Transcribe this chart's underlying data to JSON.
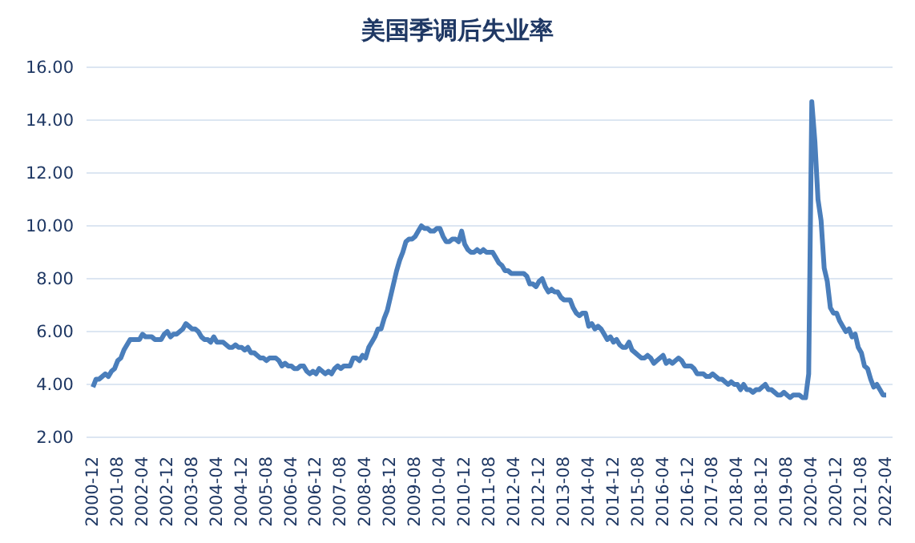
{
  "chart_data": {
    "type": "line",
    "title": "美国季调后失业率",
    "categories": [
      "2000-12",
      null,
      null,
      null,
      null,
      null,
      null,
      null,
      "2001-08",
      null,
      null,
      null,
      null,
      null,
      null,
      null,
      "2002-04",
      null,
      null,
      null,
      null,
      null,
      null,
      null,
      "2002-12",
      null,
      null,
      null,
      null,
      null,
      null,
      null,
      "2003-08",
      null,
      null,
      null,
      null,
      null,
      null,
      null,
      "2004-04",
      null,
      null,
      null,
      null,
      null,
      null,
      null,
      "2004-12",
      null,
      null,
      null,
      null,
      null,
      null,
      null,
      "2005-08",
      null,
      null,
      null,
      null,
      null,
      null,
      null,
      "2006-04",
      null,
      null,
      null,
      null,
      null,
      null,
      null,
      "2006-12",
      null,
      null,
      null,
      null,
      null,
      null,
      null,
      "2007-08",
      null,
      null,
      null,
      null,
      null,
      null,
      null,
      "2008-04",
      null,
      null,
      null,
      null,
      null,
      null,
      null,
      "2008-12",
      null,
      null,
      null,
      null,
      null,
      null,
      null,
      "2009-08",
      null,
      null,
      null,
      null,
      null,
      null,
      null,
      "2010-04",
      null,
      null,
      null,
      null,
      null,
      null,
      null,
      "2010-12",
      null,
      null,
      null,
      null,
      null,
      null,
      null,
      "2011-08",
      null,
      null,
      null,
      null,
      null,
      null,
      null,
      "2012-04",
      null,
      null,
      null,
      null,
      null,
      null,
      null,
      "2012-12",
      null,
      null,
      null,
      null,
      null,
      null,
      null,
      "2013-08",
      null,
      null,
      null,
      null,
      null,
      null,
      null,
      "2014-04",
      null,
      null,
      null,
      null,
      null,
      null,
      null,
      "2014-12",
      null,
      null,
      null,
      null,
      null,
      null,
      null,
      "2015-08",
      null,
      null,
      null,
      null,
      null,
      null,
      null,
      "2016-04",
      null,
      null,
      null,
      null,
      null,
      null,
      null,
      "2016-12",
      null,
      null,
      null,
      null,
      null,
      null,
      null,
      "2017-08",
      null,
      null,
      null,
      null,
      null,
      null,
      null,
      "2018-04",
      null,
      null,
      null,
      null,
      null,
      null,
      null,
      "2018-12",
      null,
      null,
      null,
      null,
      null,
      null,
      null,
      "2019-08",
      null,
      null,
      null,
      null,
      null,
      null,
      null,
      "2020-04",
      null,
      null,
      null,
      null,
      null,
      null,
      null,
      "2020-12",
      null,
      null,
      null,
      null,
      null,
      null,
      null,
      "2021-08",
      null,
      null,
      null,
      null,
      null,
      null,
      null,
      "2022-04"
    ],
    "series": [
      {
        "color": "#4a7ebb",
        "values": [
          3.9,
          4.2,
          4.2,
          4.3,
          4.4,
          4.3,
          4.5,
          4.6,
          4.9,
          5.0,
          5.3,
          5.5,
          5.7,
          5.7,
          5.7,
          5.7,
          5.9,
          5.8,
          5.8,
          5.8,
          5.7,
          5.7,
          5.7,
          5.9,
          6.0,
          5.8,
          5.9,
          5.9,
          6.0,
          6.1,
          6.3,
          6.2,
          6.1,
          6.1,
          6.0,
          5.8,
          5.7,
          5.7,
          5.6,
          5.8,
          5.6,
          5.6,
          5.6,
          5.5,
          5.4,
          5.4,
          5.5,
          5.4,
          5.4,
          5.3,
          5.4,
          5.2,
          5.2,
          5.1,
          5.0,
          5.0,
          4.9,
          5.0,
          5.0,
          5.0,
          4.9,
          4.7,
          4.8,
          4.7,
          4.7,
          4.6,
          4.6,
          4.7,
          4.7,
          4.5,
          4.4,
          4.5,
          4.4,
          4.6,
          4.5,
          4.4,
          4.5,
          4.4,
          4.6,
          4.7,
          4.6,
          4.7,
          4.7,
          4.7,
          5.0,
          5.0,
          4.9,
          5.1,
          5.0,
          5.4,
          5.6,
          5.8,
          6.1,
          6.1,
          6.5,
          6.8,
          7.3,
          7.8,
          8.3,
          8.7,
          9.0,
          9.4,
          9.5,
          9.5,
          9.6,
          9.8,
          10.0,
          9.9,
          9.9,
          9.8,
          9.8,
          9.9,
          9.9,
          9.6,
          9.4,
          9.4,
          9.5,
          9.5,
          9.4,
          9.8,
          9.3,
          9.1,
          9.0,
          9.0,
          9.1,
          9.0,
          9.1,
          9.0,
          9.0,
          9.0,
          8.8,
          8.6,
          8.5,
          8.3,
          8.3,
          8.2,
          8.2,
          8.2,
          8.2,
          8.2,
          8.1,
          7.8,
          7.8,
          7.7,
          7.9,
          8.0,
          7.7,
          7.5,
          7.6,
          7.5,
          7.5,
          7.3,
          7.2,
          7.2,
          7.2,
          6.9,
          6.7,
          6.6,
          6.7,
          6.7,
          6.2,
          6.3,
          6.1,
          6.2,
          6.1,
          5.9,
          5.7,
          5.8,
          5.6,
          5.7,
          5.5,
          5.4,
          5.4,
          5.6,
          5.3,
          5.2,
          5.1,
          5.0,
          5.0,
          5.1,
          5.0,
          4.8,
          4.9,
          5.0,
          5.1,
          4.8,
          4.9,
          4.8,
          4.9,
          5.0,
          4.9,
          4.7,
          4.7,
          4.7,
          4.6,
          4.4,
          4.4,
          4.4,
          4.3,
          4.3,
          4.4,
          4.3,
          4.2,
          4.2,
          4.1,
          4.0,
          4.1,
          4.0,
          4.0,
          3.8,
          4.0,
          3.8,
          3.8,
          3.7,
          3.8,
          3.8,
          3.9,
          4.0,
          3.8,
          3.8,
          3.7,
          3.6,
          3.6,
          3.7,
          3.6,
          3.5,
          3.6,
          3.6,
          3.6,
          3.5,
          3.5,
          4.4,
          14.7,
          13.2,
          11.0,
          10.2,
          8.4,
          7.9,
          6.9,
          6.7,
          6.7,
          6.4,
          6.2,
          6.0,
          6.1,
          5.8,
          5.9,
          5.4,
          5.2,
          4.7,
          4.6,
          4.2,
          3.9,
          4.0,
          3.8,
          3.6,
          3.6
        ]
      }
    ],
    "ylim": [
      2,
      16
    ],
    "yticks": [
      {
        "value": 2,
        "label": "2.00"
      },
      {
        "value": 4,
        "label": "4.00"
      },
      {
        "value": 6,
        "label": "6.00"
      },
      {
        "value": 8,
        "label": "8.00"
      },
      {
        "value": 10,
        "label": "10.00"
      },
      {
        "value": 12,
        "label": "12.00"
      },
      {
        "value": 14,
        "label": "14.00"
      },
      {
        "value": 16,
        "label": "16.00"
      }
    ],
    "grid": "y",
    "marker": "none",
    "line_style": "solid"
  }
}
